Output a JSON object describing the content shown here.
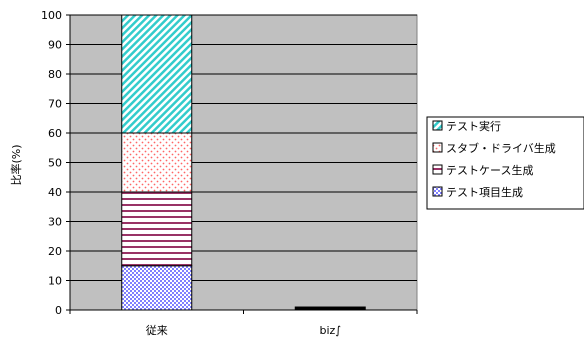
{
  "chart_data": {
    "type": "bar",
    "stacked": true,
    "categories": [
      "従来",
      "biz∫"
    ],
    "series": [
      {
        "name": "テスト項目生成",
        "values": [
          15,
          0
        ],
        "pattern": "checker-blue"
      },
      {
        "name": "テストケース生成",
        "values": [
          25,
          0
        ],
        "pattern": "h-stripes-maroon"
      },
      {
        "name": "スタブ・ドライバ生成",
        "values": [
          20,
          0
        ],
        "pattern": "dots-red"
      },
      {
        "name": "テスト実行",
        "values": [
          40,
          0
        ],
        "pattern": "diag-cyan"
      }
    ],
    "biz_total_note": 0.5,
    "ylabel": "比率(%)",
    "ylim": [
      0,
      100
    ],
    "yticks": [
      0,
      10,
      20,
      30,
      40,
      50,
      60,
      70,
      80,
      90,
      100
    ],
    "grid": true,
    "legend_position": "right",
    "colors": {
      "plot_bg": "#c0c0c0",
      "grid": "#000000",
      "frame": "#808080"
    }
  }
}
